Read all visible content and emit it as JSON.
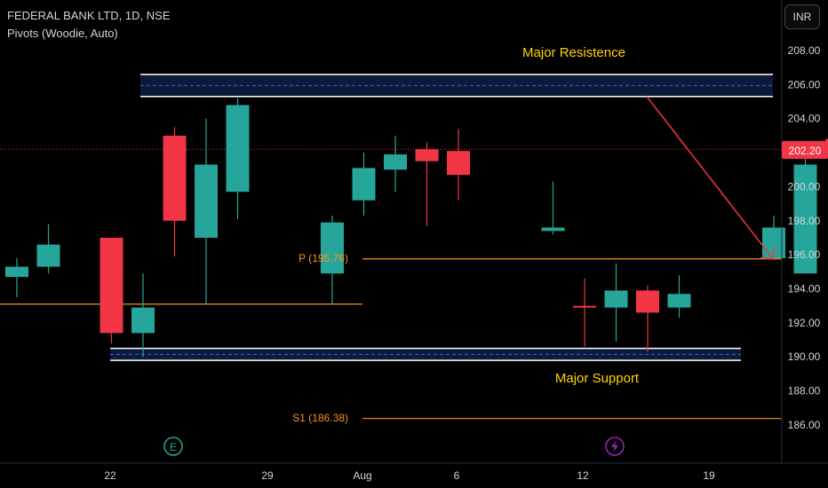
{
  "header": {
    "symbol_line": "FEDERAL BANK LTD, 1D, NSE",
    "indicator_line": "Pivots (Woodie, Auto)"
  },
  "currency_button": "INR",
  "annotations": {
    "resistance": "Major Resistence",
    "support": "Major Support",
    "pivot_p": "P (195.76)",
    "pivot_s1": "S1 (186.38)"
  },
  "last_price": "202.20",
  "event_icons": {
    "earnings": "E",
    "dividend": "lightning-icon"
  },
  "colors": {
    "up": "#26a69a",
    "down": "#f23645",
    "pivot": "#f7931a",
    "zone_fill": "#0d1a3a",
    "zone_dash": "#2962ff",
    "annotation": "#ffd600",
    "arrow": "#f23645"
  },
  "chart_data": {
    "type": "candlestick",
    "title": "FEDERAL BANK LTD, 1D, NSE",
    "ylim": [
      184.8,
      210.2
    ],
    "y_ticks": [
      "208.00",
      "206.00",
      "204.00",
      "202.00",
      "200.00",
      "198.00",
      "196.00",
      "194.00",
      "192.00",
      "190.00",
      "188.00",
      "186.00"
    ],
    "x_ticks": [
      "22",
      "29",
      "Aug",
      "6",
      "12",
      "19"
    ],
    "candles": [
      {
        "date": "Jul 18",
        "o": 194.7,
        "h": 195.8,
        "l": 193.5,
        "c": 195.3
      },
      {
        "date": "Jul 19",
        "o": 195.3,
        "h": 197.8,
        "l": 194.9,
        "c": 196.6
      },
      {
        "date": "Jul 22",
        "o": 197.0,
        "h": 197.0,
        "l": 190.8,
        "c": 191.4
      },
      {
        "date": "Jul 23",
        "o": 191.4,
        "h": 194.9,
        "l": 190.0,
        "c": 192.9
      },
      {
        "date": "Jul 24",
        "o": 203.0,
        "h": 203.5,
        "l": 195.9,
        "c": 198.0
      },
      {
        "date": "Jul 25",
        "o": 197.0,
        "h": 204.0,
        "l": 193.1,
        "c": 201.3
      },
      {
        "date": "Jul 26",
        "o": 199.7,
        "h": 205.2,
        "l": 198.1,
        "c": 204.8
      },
      {
        "date": "Jul 29",
        "o": 194.9,
        "h": 198.3,
        "l": 193.1,
        "c": 197.9
      },
      {
        "date": "Jul 30",
        "o": 199.2,
        "h": 202.0,
        "l": 198.3,
        "c": 201.1
      },
      {
        "date": "Jul 31",
        "o": 201.0,
        "h": 203.0,
        "l": 199.7,
        "c": 201.9
      },
      {
        "date": "Aug 1",
        "o": 202.2,
        "h": 202.6,
        "l": 197.7,
        "c": 201.5
      },
      {
        "date": "Aug 2",
        "o": 202.1,
        "h": 203.4,
        "l": 199.2,
        "c": 200.7
      },
      {
        "date": "Aug 5",
        "o": 197.4,
        "h": 200.3,
        "l": 197.2,
        "c": 197.6
      },
      {
        "date": "Aug 6",
        "o": 193.0,
        "h": 194.6,
        "l": 190.6,
        "c": 192.9
      },
      {
        "date": "Aug 7",
        "o": 192.9,
        "h": 195.5,
        "l": 190.9,
        "c": 193.9
      },
      {
        "date": "Aug 8",
        "o": 193.9,
        "h": 194.2,
        "l": 190.3,
        "c": 192.6
      },
      {
        "date": "Aug 9",
        "o": 192.9,
        "h": 194.8,
        "l": 192.3,
        "c": 193.7
      },
      {
        "date": "Aug 12",
        "o": 195.8,
        "h": 198.3,
        "l": 195.7,
        "c": 197.6
      },
      {
        "date": "Aug 13",
        "o": 194.9,
        "h": 201.7,
        "l": 194.9,
        "c": 201.3
      },
      {
        "date": "Aug 14",
        "o": 202.8,
        "h": 206.7,
        "l": 201.6,
        "c": 202.2
      }
    ],
    "pivots": {
      "P": 195.76,
      "S1": 186.38
    },
    "zones": [
      {
        "label": "Major Resistence",
        "low": 205.3,
        "high": 206.6
      },
      {
        "label": "Major Support",
        "low": 189.8,
        "high": 190.5
      }
    ],
    "last_price": 202.2,
    "grid": false
  }
}
